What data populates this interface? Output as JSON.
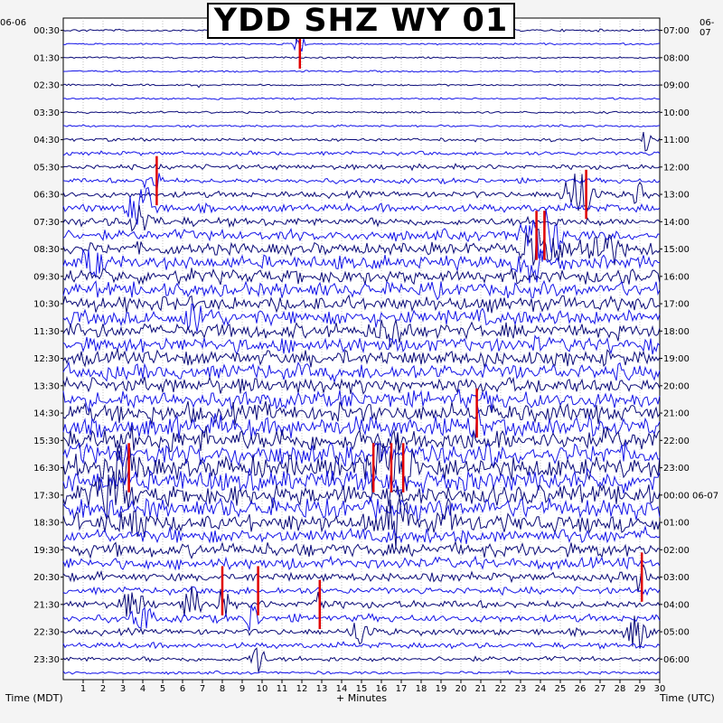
{
  "title": "YDD SHZ WY 01",
  "date_left": "06-06",
  "date_right": "06-07",
  "xlabel": "+ Minutes",
  "left_axis_label": "Time (MDT)",
  "right_axis_label": "Time (UTC)",
  "colors": {
    "background": "#f4f4f4",
    "plot_bg": "#ffffff",
    "trace_a": "#0a0a78",
    "trace_b": "#1515e8",
    "event": "#e00000",
    "grid": "#9a9a9a"
  },
  "chart_data": {
    "type": "line",
    "subtype": "helicorder",
    "title": "YDD SHZ WY 01",
    "xlabel": "+ Minutes",
    "xlim": [
      0,
      30
    ],
    "x_ticks": [
      1,
      2,
      3,
      4,
      5,
      6,
      7,
      8,
      9,
      10,
      11,
      12,
      13,
      14,
      15,
      16,
      17,
      18,
      19,
      20,
      21,
      22,
      23,
      24,
      25,
      26,
      27,
      28,
      29,
      30
    ],
    "rows_per_hour": 2,
    "minutes_per_row": 30,
    "row_count": 48,
    "left_ticks": [
      "00:30",
      "01:30",
      "02:30",
      "03:30",
      "04:30",
      "05:30",
      "06:30",
      "07:30",
      "08:30",
      "09:30",
      "10:30",
      "11:30",
      "12:30",
      "13:30",
      "14:30",
      "15:30",
      "16:30",
      "17:30",
      "18:30",
      "19:30",
      "20:30",
      "21:30",
      "22:30",
      "23:30"
    ],
    "right_ticks": [
      "07:00",
      "08:00",
      "09:00",
      "10:00",
      "11:00",
      "12:00",
      "13:00",
      "14:00",
      "15:00",
      "16:00",
      "17:00",
      "18:00",
      "19:00",
      "20:00",
      "21:00",
      "22:00",
      "23:00",
      "00:00 06-07",
      "01:00",
      "02:00",
      "03:00",
      "04:00",
      "05:00",
      "06:00"
    ],
    "row_noise_level": [
      0.15,
      0.12,
      0.12,
      0.12,
      0.12,
      0.12,
      0.15,
      0.15,
      0.22,
      0.28,
      0.35,
      0.35,
      0.45,
      0.55,
      0.6,
      0.75,
      0.85,
      0.95,
      1.0,
      1.05,
      1.05,
      1.1,
      1.05,
      1.1,
      1.05,
      1.15,
      1.1,
      1.25,
      1.35,
      1.45,
      1.6,
      1.55,
      1.55,
      1.55,
      1.45,
      1.4,
      1.2,
      1.05,
      0.95,
      0.8,
      0.6,
      0.5,
      0.55,
      0.55,
      0.45,
      0.4,
      0.35,
      0.2
    ],
    "events": [
      {
        "row": 0,
        "minute": 11.8,
        "amplitude": 3.0,
        "duration": 0.5
      },
      {
        "row": 1,
        "minute": 11.9,
        "amplitude": 2.0,
        "duration": 0.4
      },
      {
        "row": 4,
        "minute": 6.9,
        "amplitude": 1.5,
        "duration": 0.1
      },
      {
        "row": 8,
        "minute": 29.3,
        "amplitude": 2.0,
        "duration": 0.3
      },
      {
        "row": 11,
        "minute": 4.5,
        "amplitude": 2.5,
        "duration": 0.6
      },
      {
        "row": 12,
        "minute": 26.0,
        "amplitude": 3.5,
        "duration": 1.2
      },
      {
        "row": 12,
        "minute": 28.9,
        "amplitude": 2.0,
        "duration": 0.4
      },
      {
        "row": 13,
        "minute": 4.0,
        "amplitude": 3.5,
        "duration": 1.0
      },
      {
        "row": 14,
        "minute": 3.9,
        "amplitude": 2.5,
        "duration": 0.8
      },
      {
        "row": 15,
        "minute": 24.0,
        "amplitude": 3.5,
        "duration": 1.5
      },
      {
        "row": 16,
        "minute": 24.0,
        "amplitude": 3.5,
        "duration": 1.5
      },
      {
        "row": 16,
        "minute": 27.0,
        "amplitude": 2.5,
        "duration": 1.5
      },
      {
        "row": 17,
        "minute": 1.5,
        "amplitude": 2.0,
        "duration": 0.8
      },
      {
        "row": 17,
        "minute": 23.5,
        "amplitude": 2.5,
        "duration": 1.0
      },
      {
        "row": 21,
        "minute": 6.8,
        "amplitude": 2.0,
        "duration": 1.0
      },
      {
        "row": 22,
        "minute": 16.5,
        "amplitude": 2.0,
        "duration": 1.0
      },
      {
        "row": 29,
        "minute": 20.8,
        "amplitude": 2.5,
        "duration": 0.4
      },
      {
        "row": 32,
        "minute": 3.2,
        "amplitude": 3.0,
        "duration": 0.8
      },
      {
        "row": 32,
        "minute": 15.7,
        "amplitude": 3.0,
        "duration": 0.8
      },
      {
        "row": 32,
        "minute": 16.8,
        "amplitude": 4.0,
        "duration": 1.2
      },
      {
        "row": 34,
        "minute": 2.5,
        "amplitude": 3.0,
        "duration": 1.2
      },
      {
        "row": 36,
        "minute": 3.5,
        "amplitude": 2.5,
        "duration": 1.0
      },
      {
        "row": 36,
        "minute": 16.8,
        "amplitude": 3.5,
        "duration": 1.0
      },
      {
        "row": 36,
        "minute": 19.4,
        "amplitude": 2.5,
        "duration": 0.5
      },
      {
        "row": 40,
        "minute": 29.0,
        "amplitude": 2.5,
        "duration": 0.4
      },
      {
        "row": 42,
        "minute": 3.5,
        "amplitude": 2.0,
        "duration": 0.8
      },
      {
        "row": 42,
        "minute": 6.5,
        "amplitude": 2.0,
        "duration": 0.8
      },
      {
        "row": 42,
        "minute": 8.0,
        "amplitude": 2.5,
        "duration": 0.4
      },
      {
        "row": 42,
        "minute": 12.8,
        "amplitude": 2.5,
        "duration": 0.4
      },
      {
        "row": 43,
        "minute": 4.0,
        "amplitude": 2.0,
        "duration": 0.8
      },
      {
        "row": 43,
        "minute": 9.5,
        "amplitude": 2.5,
        "duration": 0.5
      },
      {
        "row": 44,
        "minute": 15.0,
        "amplitude": 2.0,
        "duration": 0.8
      },
      {
        "row": 44,
        "minute": 28.8,
        "amplitude": 2.5,
        "duration": 0.8
      },
      {
        "row": 46,
        "minute": 9.8,
        "amplitude": 2.5,
        "duration": 0.5
      }
    ],
    "clipped_spikes": [
      {
        "row": 1,
        "minute": 11.9
      },
      {
        "row": 11,
        "minute": 4.7
      },
      {
        "row": 12,
        "minute": 26.3
      },
      {
        "row": 15,
        "minute": 23.8
      },
      {
        "row": 15,
        "minute": 24.2
      },
      {
        "row": 28,
        "minute": 20.8
      },
      {
        "row": 32,
        "minute": 3.3
      },
      {
        "row": 32,
        "minute": 15.6
      },
      {
        "row": 32,
        "minute": 16.5
      },
      {
        "row": 32,
        "minute": 17.1
      },
      {
        "row": 41,
        "minute": 8.0
      },
      {
        "row": 41,
        "minute": 9.8
      },
      {
        "row": 42,
        "minute": 12.9
      },
      {
        "row": 40,
        "minute": 29.1
      }
    ]
  }
}
